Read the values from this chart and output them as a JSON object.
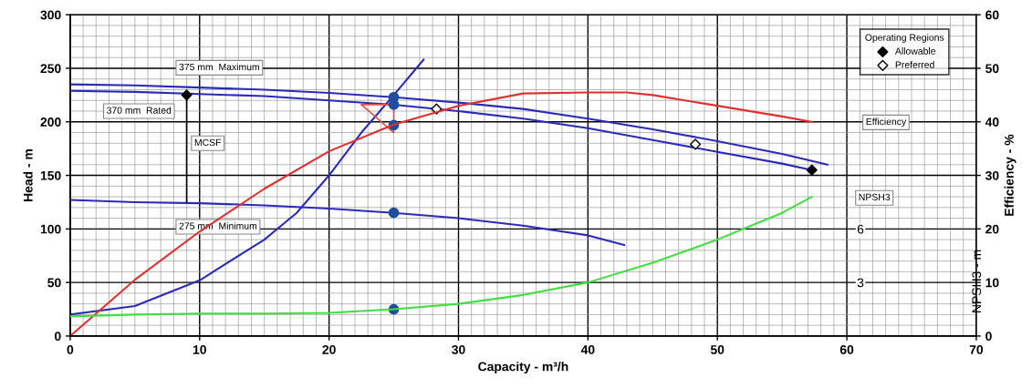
{
  "chart_data": {
    "type": "line",
    "xlabel": "Capacity - m³/h",
    "ylabel": "Head - m",
    "y2label": "Efficiency - %",
    "y3label": "NPSH3 - m",
    "xlim": [
      0,
      70
    ],
    "xticks": [
      0,
      10,
      20,
      30,
      40,
      50,
      60,
      70
    ],
    "ylim": [
      0,
      300
    ],
    "yticks": [
      0,
      50,
      100,
      150,
      200,
      250,
      300
    ],
    "y2lim": [
      0,
      60
    ],
    "y2ticks": [
      0,
      10,
      20,
      30,
      40,
      50,
      60
    ],
    "y3lim": [
      0,
      18
    ],
    "y3ticks": [
      3,
      6
    ],
    "grid": true,
    "legend": "top right",
    "legend_title": "Operating Regions",
    "annotations": [
      "375 mm  Maximum",
      "370 mm  Rated",
      "275 mm  Minimum",
      "MCSF",
      "Efficiency",
      "NPSH3"
    ],
    "series": [
      {
        "color": "#2b2bb8",
        "x": [
          0,
          5,
          10,
          15,
          20,
          25,
          30,
          35,
          40,
          45,
          50,
          55,
          58.5
        ],
        "values": [
          235,
          234,
          232,
          230,
          227,
          223,
          218,
          212,
          203,
          193,
          182,
          170,
          160
        ]
      },
      {
        "color": "#2b2bb8",
        "x": [
          0,
          5,
          10,
          15,
          20,
          25,
          30,
          35,
          40,
          45,
          50,
          55,
          57.3
        ],
        "values": [
          229,
          228,
          226,
          224,
          220,
          216,
          210,
          203,
          194,
          183,
          172,
          161,
          155
        ]
      },
      {
        "color": "#2b2bb8",
        "x": [
          0,
          5,
          10,
          15,
          20,
          25,
          30,
          35,
          40,
          42.8
        ],
        "values": [
          127,
          125,
          124,
          122,
          119,
          115,
          110,
          103,
          94,
          85
        ]
      },
      {
        "color": "#2b2bb8",
        "x": [
          0,
          5,
          10,
          15,
          17.5,
          20,
          22.5,
          25,
          27.3
        ],
        "values": [
          20,
          28,
          52,
          90,
          115,
          150,
          190,
          225,
          258
        ]
      },
      {
        "color": "#e03030",
        "axis": "y2",
        "x": [
          0,
          5,
          10,
          15,
          20,
          25,
          30,
          35,
          40,
          43,
          45,
          50,
          55,
          57.3
        ],
        "values": [
          0,
          10.5,
          19.5,
          27.5,
          34.5,
          39.5,
          43,
          45.3,
          45.5,
          45.5,
          45,
          43,
          41,
          40
        ]
      },
      {
        "color": "#40e040",
        "axis": "y3",
        "x": [
          0,
          5,
          10,
          15,
          20,
          25,
          30,
          35,
          40,
          45,
          50,
          55,
          57.3
        ],
        "values": [
          1.1,
          1.2,
          1.26,
          1.26,
          1.3,
          1.5,
          1.8,
          2.3,
          3.0,
          4.1,
          5.4,
          6.9,
          7.8
        ]
      },
      {
        "type": "scatter",
        "marker": "circle",
        "color": "#1f4e9e",
        "x": [
          25,
          25,
          25,
          25,
          25
        ],
        "values": [
          223,
          216,
          197,
          115,
          25
        ]
      },
      {
        "type": "scatter",
        "marker": "diamond",
        "name": "Allowable",
        "color": "#000000",
        "x": [
          9,
          57.3
        ],
        "values": [
          225,
          155
        ]
      },
      {
        "type": "scatter",
        "marker": "diamond",
        "name": "Preferred",
        "color": "#ffffff",
        "x": [
          28.3,
          48.3
        ],
        "values": [
          212,
          179
        ]
      }
    ]
  }
}
